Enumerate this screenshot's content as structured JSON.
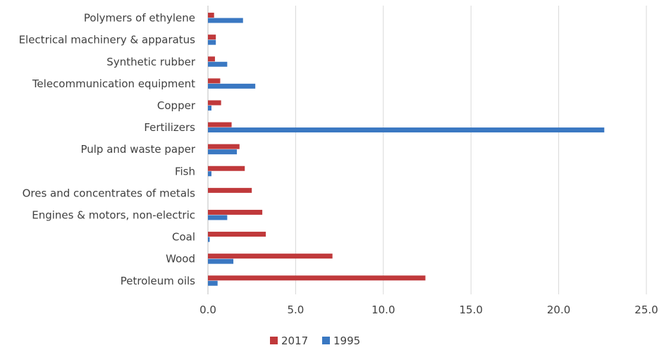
{
  "chart_data": {
    "type": "bar",
    "orientation": "horizontal",
    "title": "",
    "xlabel": "",
    "ylabel": "",
    "categories": [
      "Polymers of ethylene",
      "Electrical machinery & apparatus",
      "Synthetic rubber",
      "Telecommunication equipment",
      "Copper",
      "Fertilizers",
      "Pulp and waste paper",
      "Fish",
      "Ores and concentrates of metals",
      "Engines & motors, non-electric",
      "Coal",
      "Wood",
      "Petroleum oils"
    ],
    "series": [
      {
        "name": "2017",
        "color": "#c0393b",
        "values": [
          0.35,
          0.45,
          0.4,
          0.7,
          0.75,
          1.35,
          1.8,
          2.1,
          2.5,
          3.1,
          3.3,
          7.1,
          12.4
        ]
      },
      {
        "name": "1995",
        "color": "#3a78c2",
        "values": [
          2.0,
          0.45,
          1.1,
          2.7,
          0.2,
          22.6,
          1.65,
          0.2,
          0.0,
          1.1,
          0.1,
          1.45,
          0.55
        ]
      }
    ],
    "xlim": [
      0,
      25
    ],
    "xticks": [
      "0.0",
      "5.0",
      "10.0",
      "15.0",
      "20.0",
      "25.0"
    ],
    "grid": "vertical",
    "legend_position": "bottom"
  }
}
